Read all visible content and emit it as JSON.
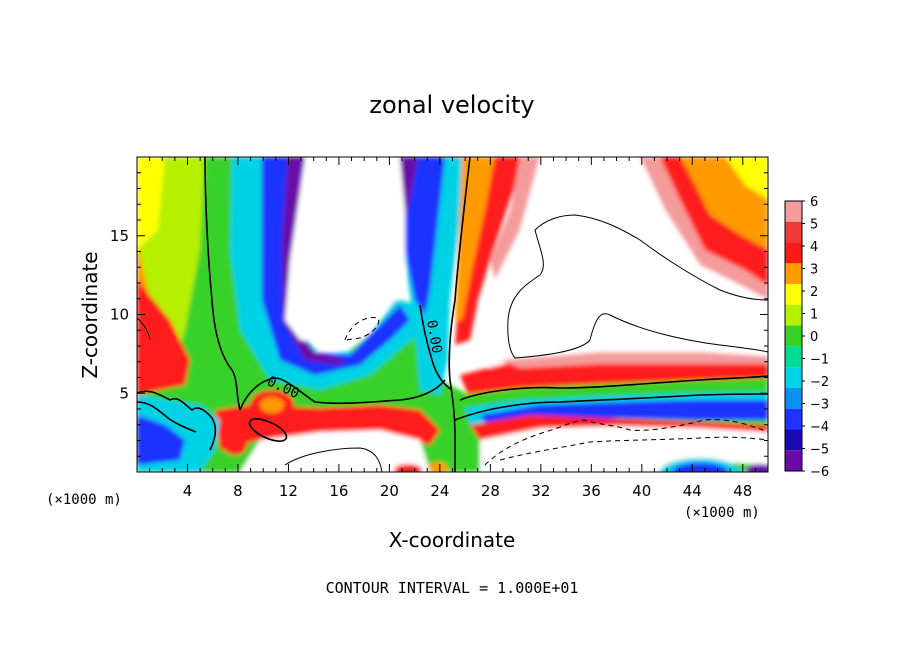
{
  "chart_data": {
    "type": "heatmap",
    "title": "zonal velocity",
    "xlabel": "X-coordinate",
    "ylabel": "Z-coordinate",
    "x_unit_label": "(×1000 m)",
    "x_unit_label_right": "(×1000 m)",
    "footer": "CONTOUR INTERVAL = 1.000E+01",
    "xlim": [
      0,
      50
    ],
    "ylim": [
      0,
      20
    ],
    "x_ticks": [
      4,
      8,
      12,
      16,
      20,
      24,
      28,
      32,
      36,
      40,
      44,
      48
    ],
    "y_ticks": [
      5,
      10,
      15
    ],
    "colorbar": {
      "min": -6,
      "max": 6,
      "levels": [
        6,
        5,
        4,
        3,
        2,
        1,
        0,
        -1,
        -2,
        -3,
        -4,
        -5,
        -6
      ],
      "labels": [
        "6",
        "5",
        "4",
        "3",
        "2",
        "1",
        "0",
        "−1",
        "−2",
        "−3",
        "−4",
        "−5",
        "−6"
      ],
      "colors": [
        "#f49b9b",
        "#ee3a3a",
        "#ff1a1a",
        "#ff9a00",
        "#ffff00",
        "#b4f000",
        "#37d12a",
        "#00dc96",
        "#00d2e6",
        "#0a90f0",
        "#1f32ff",
        "#1a0ab4",
        "#6a0aa8"
      ]
    },
    "contour_labels": [
      {
        "text": "0.00",
        "x": 11.6,
        "z": 5.4,
        "angle": 25
      },
      {
        "text": "0.00",
        "x": 23.6,
        "z": 8.6,
        "angle": 80
      }
    ]
  }
}
